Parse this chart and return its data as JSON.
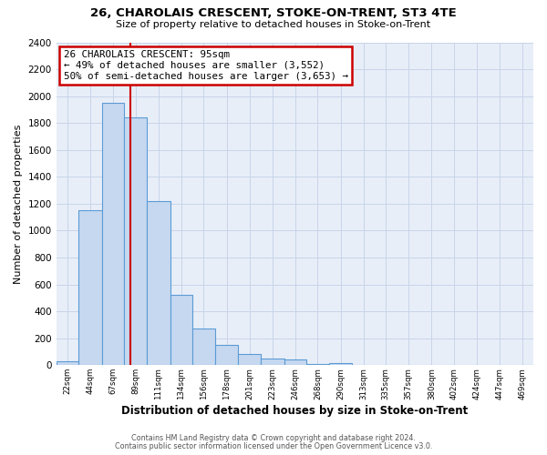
{
  "title": "26, CHAROLAIS CRESCENT, STOKE-ON-TRENT, ST3 4TE",
  "subtitle": "Size of property relative to detached houses in Stoke-on-Trent",
  "xlabel": "Distribution of detached houses by size in Stoke-on-Trent",
  "ylabel": "Number of detached properties",
  "bin_labels": [
    "22sqm",
    "44sqm",
    "67sqm",
    "89sqm",
    "111sqm",
    "134sqm",
    "156sqm",
    "178sqm",
    "201sqm",
    "223sqm",
    "246sqm",
    "268sqm",
    "290sqm",
    "313sqm",
    "335sqm",
    "357sqm",
    "380sqm",
    "402sqm",
    "424sqm",
    "447sqm",
    "469sqm"
  ],
  "bin_edges": [
    22,
    44,
    67,
    89,
    111,
    134,
    156,
    178,
    201,
    223,
    246,
    268,
    290,
    313,
    335,
    357,
    380,
    402,
    424,
    447,
    469,
    491
  ],
  "bar_heights": [
    30,
    1150,
    1950,
    1840,
    1220,
    520,
    270,
    150,
    80,
    50,
    40,
    10,
    15,
    5,
    5,
    5,
    2,
    2,
    5,
    2,
    2
  ],
  "bar_color": "#c5d8f0",
  "bar_edge_color": "#5b9bd5",
  "property_line_x": 95,
  "annotation_title": "26 CHAROLAIS CRESCENT: 95sqm",
  "annotation_line1": "← 49% of detached houses are smaller (3,552)",
  "annotation_line2": "50% of semi-detached houses are larger (3,653) →",
  "annotation_box_color": "#ffffff",
  "annotation_box_edgecolor": "#cc0000",
  "red_line_color": "#cc0000",
  "ylim": [
    0,
    2400
  ],
  "yticks": [
    0,
    200,
    400,
    600,
    800,
    1000,
    1200,
    1400,
    1600,
    1800,
    2000,
    2200,
    2400
  ],
  "grid_color": "#c8d4e8",
  "plot_background": "#e8eef8",
  "fig_background": "#ffffff",
  "footer_line1": "Contains HM Land Registry data © Crown copyright and database right 2024.",
  "footer_line2": "Contains public sector information licensed under the Open Government Licence v3.0."
}
